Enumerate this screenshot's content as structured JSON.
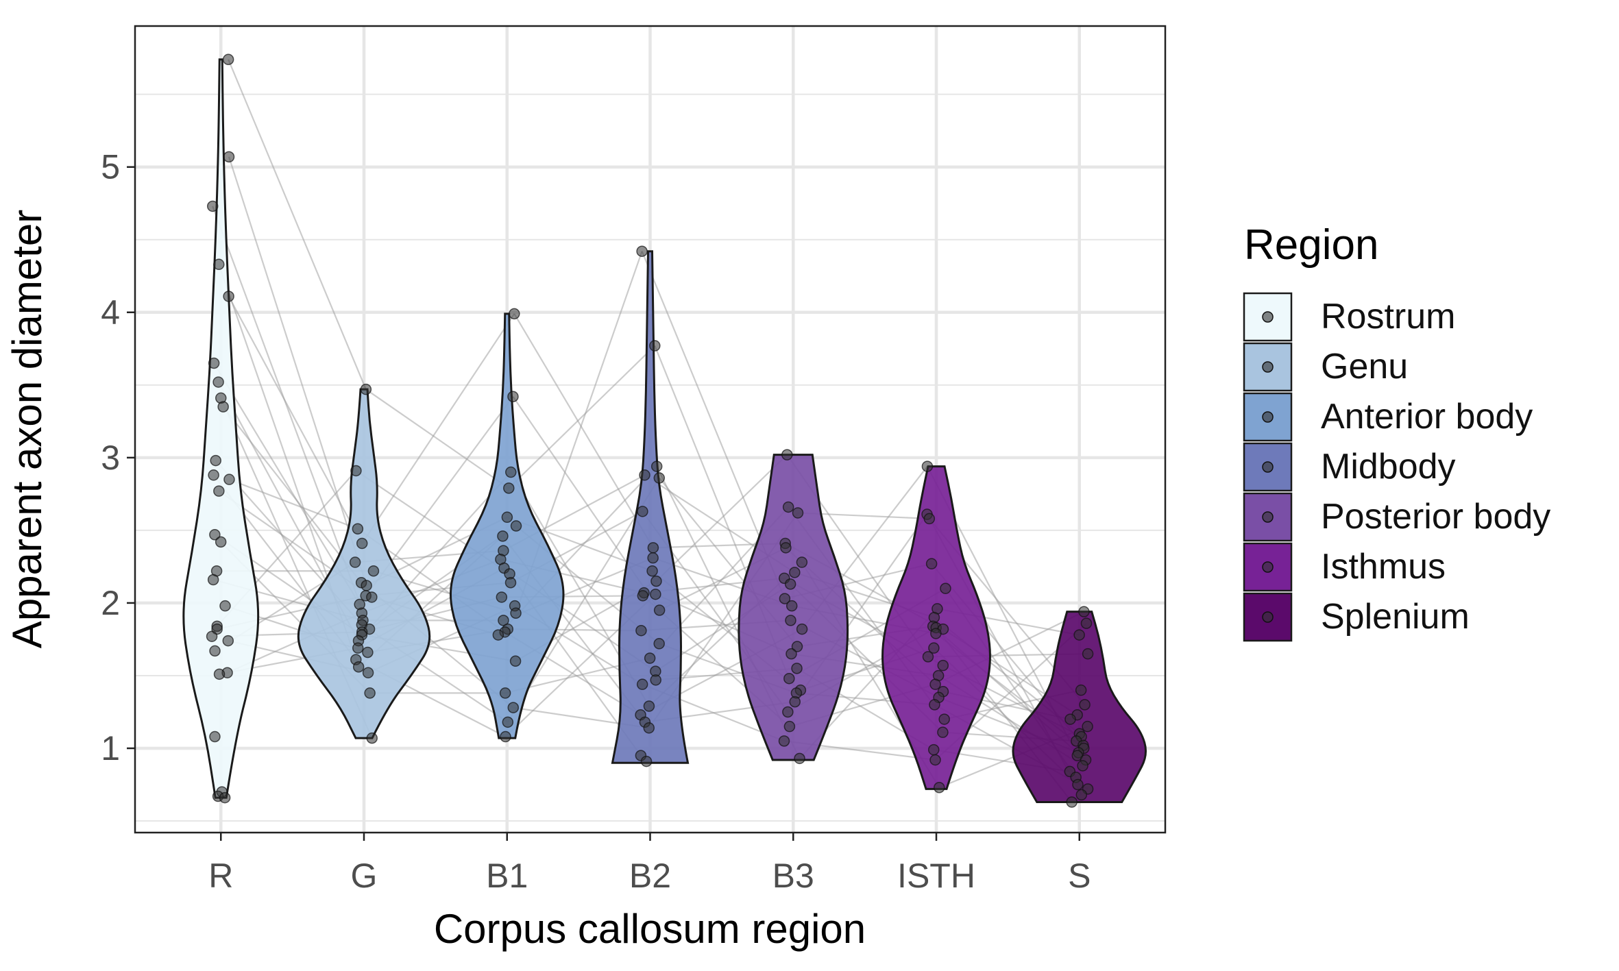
{
  "chart_data": {
    "type": "violin",
    "xlabel": "Corpus callosum region",
    "ylabel": "Apparent axon diameter",
    "ylim": [
      0.42,
      5.97
    ],
    "yticks": [
      1,
      2,
      3,
      4,
      5
    ],
    "grid": true,
    "legend_title": "Region",
    "legend_position": "right",
    "categories": [
      "R",
      "G",
      "B1",
      "B2",
      "B3",
      "ISTH",
      "S"
    ],
    "series": [
      {
        "name": "Rostrum",
        "code": "R",
        "color": "#EEF9FC",
        "range": [
          0.66,
          5.74
        ],
        "density": [
          0.08,
          0.22,
          0.45,
          0.58,
          0.42,
          0.28,
          0.22,
          0.16,
          0.12,
          0.08,
          0.05,
          0.03,
          0.02
        ],
        "values": [
          5.74,
          5.07,
          4.73,
          4.33,
          4.11,
          3.65,
          3.52,
          3.41,
          3.35,
          2.98,
          2.88,
          2.85,
          2.77,
          2.47,
          2.42,
          2.22,
          2.16,
          1.98,
          1.84,
          1.82,
          1.77,
          1.74,
          1.67,
          1.52,
          1.51,
          1.08,
          0.7,
          0.67,
          0.66
        ]
      },
      {
        "name": "Genu",
        "code": "G",
        "color": "#A9C4DF",
        "range": [
          1.07,
          3.47
        ],
        "density": [
          0.12,
          0.35,
          0.7,
          1.0,
          0.88,
          0.55,
          0.3,
          0.18,
          0.2,
          0.14,
          0.08,
          0.05
        ],
        "values": [
          3.47,
          2.91,
          2.51,
          2.41,
          2.28,
          2.22,
          2.14,
          2.12,
          2.05,
          2.04,
          1.99,
          1.93,
          1.88,
          1.85,
          1.82,
          1.8,
          1.78,
          1.74,
          1.69,
          1.66,
          1.61,
          1.56,
          1.52,
          1.38,
          1.07
        ]
      },
      {
        "name": "Anterior body",
        "code": "B1",
        "color": "#7FA3D1",
        "range": [
          1.07,
          3.99
        ],
        "density": [
          0.12,
          0.22,
          0.5,
          0.78,
          0.85,
          0.6,
          0.3,
          0.15,
          0.1,
          0.06,
          0.04,
          0.03
        ],
        "values": [
          3.99,
          3.42,
          2.9,
          2.79,
          2.59,
          2.53,
          2.46,
          2.36,
          2.3,
          2.24,
          2.2,
          2.14,
          2.04,
          1.98,
          1.93,
          1.88,
          1.82,
          1.8,
          1.78,
          1.6,
          1.38,
          1.28,
          1.18,
          1.08
        ]
      },
      {
        "name": "Midbody",
        "code": "B2",
        "color": "#6E7ABA",
        "range": [
          0.9,
          4.42
        ],
        "density": [
          0.55,
          0.42,
          0.45,
          0.45,
          0.38,
          0.25,
          0.12,
          0.08,
          0.06,
          0.05,
          0.04,
          0.03
        ],
        "values": [
          4.42,
          3.77,
          2.94,
          2.88,
          2.86,
          2.63,
          2.38,
          2.31,
          2.22,
          2.15,
          2.07,
          2.06,
          2.05,
          1.95,
          1.81,
          1.72,
          1.62,
          1.53,
          1.47,
          1.44,
          1.29,
          1.23,
          1.18,
          1.14,
          0.95,
          0.91
        ]
      },
      {
        "name": "Posterior body",
        "code": "B3",
        "color": "#7A4FA6",
        "range": [
          0.92,
          3.02
        ],
        "density": [
          0.3,
          0.5,
          0.68,
          0.78,
          0.8,
          0.76,
          0.6,
          0.42,
          0.35,
          0.28
        ],
        "values": [
          3.02,
          2.66,
          2.62,
          2.41,
          2.38,
          2.28,
          2.21,
          2.17,
          2.13,
          2.03,
          1.98,
          1.88,
          1.82,
          1.7,
          1.65,
          1.55,
          1.48,
          1.4,
          1.38,
          1.32,
          1.25,
          1.15,
          1.05,
          0.93
        ]
      },
      {
        "name": "Isthmus",
        "code": "ISTH",
        "color": "#772296",
        "range": [
          0.72,
          2.94
        ],
        "density": [
          0.15,
          0.3,
          0.5,
          0.72,
          0.8,
          0.75,
          0.6,
          0.4,
          0.3,
          0.22,
          0.12
        ],
        "values": [
          2.94,
          2.61,
          2.58,
          2.27,
          2.1,
          1.96,
          1.9,
          1.84,
          1.83,
          1.82,
          1.79,
          1.69,
          1.63,
          1.57,
          1.5,
          1.44,
          1.39,
          1.35,
          1.3,
          1.2,
          1.11,
          0.99,
          0.92,
          0.73
        ]
      },
      {
        "name": "Splenium",
        "code": "S",
        "color": "#5B0A6B",
        "range": [
          0.63,
          1.94
        ],
        "density": [
          0.62,
          0.82,
          1.0,
          0.9,
          0.6,
          0.4,
          0.35,
          0.28,
          0.18
        ],
        "values": [
          1.94,
          1.86,
          1.78,
          1.65,
          1.4,
          1.3,
          1.23,
          1.2,
          1.15,
          1.1,
          1.08,
          1.05,
          1.02,
          1.0,
          0.97,
          0.95,
          0.92,
          0.88,
          0.84,
          0.8,
          0.75,
          0.72,
          0.68,
          0.63
        ]
      }
    ]
  },
  "colors": {
    "grid": "#E6E6E6",
    "axis": "#222222",
    "point": "#333333",
    "line": "#9A9A9A"
  }
}
